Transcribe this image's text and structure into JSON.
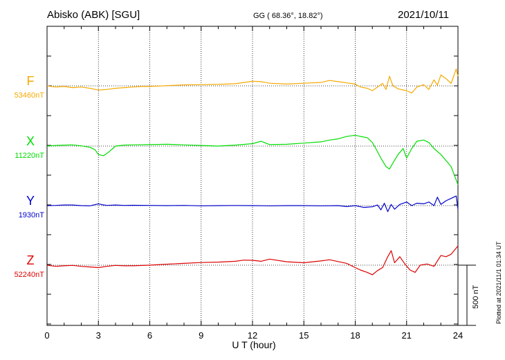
{
  "header": {
    "station": "Abisko (ABK)  [SGU]",
    "coords": "GG ( 68.36°,  18.82°)",
    "date": "2021/10/11"
  },
  "footer": {
    "plotted": "Plotted at 2021/11/1 01:34 UT",
    "scale_label": "500 nT"
  },
  "colors": {
    "F": "#f5a900",
    "X": "#00dd00",
    "Y": "#0000cc",
    "Z": "#dd0000"
  },
  "chart_data": {
    "type": "line",
    "xlabel": "U T (hour)",
    "xlim": [
      0,
      24
    ],
    "x_ticks": [
      "0",
      "3",
      "6",
      "9",
      "12",
      "15",
      "18",
      "21",
      "24"
    ],
    "scale_nT": 500,
    "series": [
      {
        "name": "F",
        "baseline_label": "53460nT",
        "baseline_nT": 53460,
        "x": [
          0,
          0.5,
          1,
          1.5,
          2,
          2.5,
          3,
          3.5,
          4,
          4.5,
          5,
          5.5,
          6,
          7,
          8,
          9,
          10,
          11,
          12,
          12.5,
          13,
          14,
          15,
          16,
          16.5,
          17,
          17.5,
          18,
          18.3,
          18.7,
          19,
          19.3,
          19.6,
          19.8,
          20,
          20.2,
          20.5,
          21,
          21.3,
          21.6,
          22,
          22.3,
          22.6,
          22.8,
          23,
          23.3,
          23.6,
          23.9,
          24
        ],
        "y": [
          53460,
          53450,
          53455,
          53445,
          53450,
          53440,
          53425,
          53430,
          53440,
          53445,
          53450,
          53455,
          53455,
          53462,
          53468,
          53470,
          53472,
          53478,
          53498,
          53495,
          53482,
          53475,
          53482,
          53488,
          53505,
          53495,
          53485,
          53475,
          53450,
          53440,
          53420,
          53450,
          53480,
          53430,
          53540,
          53460,
          53435,
          53420,
          53400,
          53450,
          53470,
          53430,
          53510,
          53465,
          53550,
          53520,
          53480,
          53600,
          53540
        ]
      },
      {
        "name": "X",
        "baseline_label": "11220nT",
        "baseline_nT": 11220,
        "x": [
          0,
          0.5,
          1,
          1.5,
          2,
          2.5,
          2.8,
          3,
          3.3,
          3.6,
          4,
          4.5,
          5,
          6,
          7,
          8,
          9,
          10,
          11,
          12,
          12.5,
          13,
          14,
          15,
          16,
          16.5,
          17,
          17.5,
          18,
          18.3,
          18.7,
          19,
          19.2,
          19.5,
          19.8,
          20,
          20.2,
          20.5,
          20.8,
          21,
          21.3,
          21.6,
          22,
          22.3,
          22.6,
          23,
          23.3,
          23.6,
          24
        ],
        "y": [
          11220,
          11225,
          11228,
          11230,
          11222,
          11210,
          11190,
          11150,
          11140,
          11170,
          11220,
          11228,
          11230,
          11232,
          11235,
          11230,
          11225,
          11220,
          11228,
          11240,
          11260,
          11232,
          11235,
          11245,
          11255,
          11270,
          11280,
          11300,
          11310,
          11300,
          11290,
          11250,
          11200,
          11120,
          11050,
          11030,
          11080,
          11150,
          11200,
          11120,
          11200,
          11260,
          11270,
          11250,
          11200,
          11150,
          11100,
          11050,
          10900
        ]
      },
      {
        "name": "Y",
        "baseline_label": "1930nT",
        "baseline_nT": 1930,
        "x": [
          0,
          0.5,
          1,
          1.5,
          2,
          2.5,
          3,
          3.2,
          3.5,
          4,
          4.5,
          5,
          6,
          7,
          8,
          9,
          10,
          11,
          12,
          13,
          14,
          15,
          16,
          17,
          17.5,
          18,
          18.5,
          19,
          19.3,
          19.5,
          19.7,
          19.9,
          20.1,
          20.3,
          20.6,
          21,
          21.3,
          21.6,
          22,
          22.3,
          22.6,
          22.8,
          23,
          23.3,
          23.6,
          23.9,
          24
        ],
        "y": [
          1930,
          1932,
          1935,
          1935,
          1930,
          1928,
          1945,
          1938,
          1932,
          1935,
          1932,
          1933,
          1932,
          1930,
          1932,
          1928,
          1930,
          1931,
          1930,
          1928,
          1930,
          1930,
          1928,
          1930,
          1922,
          1930,
          1915,
          1920,
          1935,
          1895,
          1950,
          1880,
          1940,
          1900,
          1940,
          1960,
          1930,
          1950,
          1945,
          1960,
          1930,
          2000,
          1940,
          1970,
          1990,
          2010,
          1900
        ]
      },
      {
        "name": "Z",
        "baseline_label": "52240nT",
        "baseline_nT": 52240,
        "x": [
          0,
          0.5,
          1,
          1.5,
          2,
          2.5,
          3,
          3.5,
          4,
          4.5,
          5,
          6,
          7,
          8,
          9,
          10,
          11,
          11.5,
          12,
          12.5,
          13,
          14,
          15,
          16,
          16.5,
          17,
          17.5,
          18,
          18.3,
          18.7,
          19,
          19.3,
          19.6,
          19.9,
          20.1,
          20.3,
          20.6,
          20.9,
          21.2,
          21.5,
          21.8,
          22.2,
          22.6,
          23,
          23.3,
          23.6,
          24
        ],
        "y": [
          52240,
          52230,
          52235,
          52238,
          52230,
          52225,
          52220,
          52230,
          52238,
          52235,
          52235,
          52240,
          52248,
          52255,
          52262,
          52265,
          52272,
          52282,
          52280,
          52272,
          52290,
          52268,
          52260,
          52275,
          52285,
          52270,
          52255,
          52220,
          52200,
          52180,
          52160,
          52195,
          52220,
          52310,
          52360,
          52260,
          52310,
          52250,
          52200,
          52180,
          52240,
          52250,
          52230,
          52320,
          52310,
          52330,
          52400
        ]
      }
    ]
  }
}
